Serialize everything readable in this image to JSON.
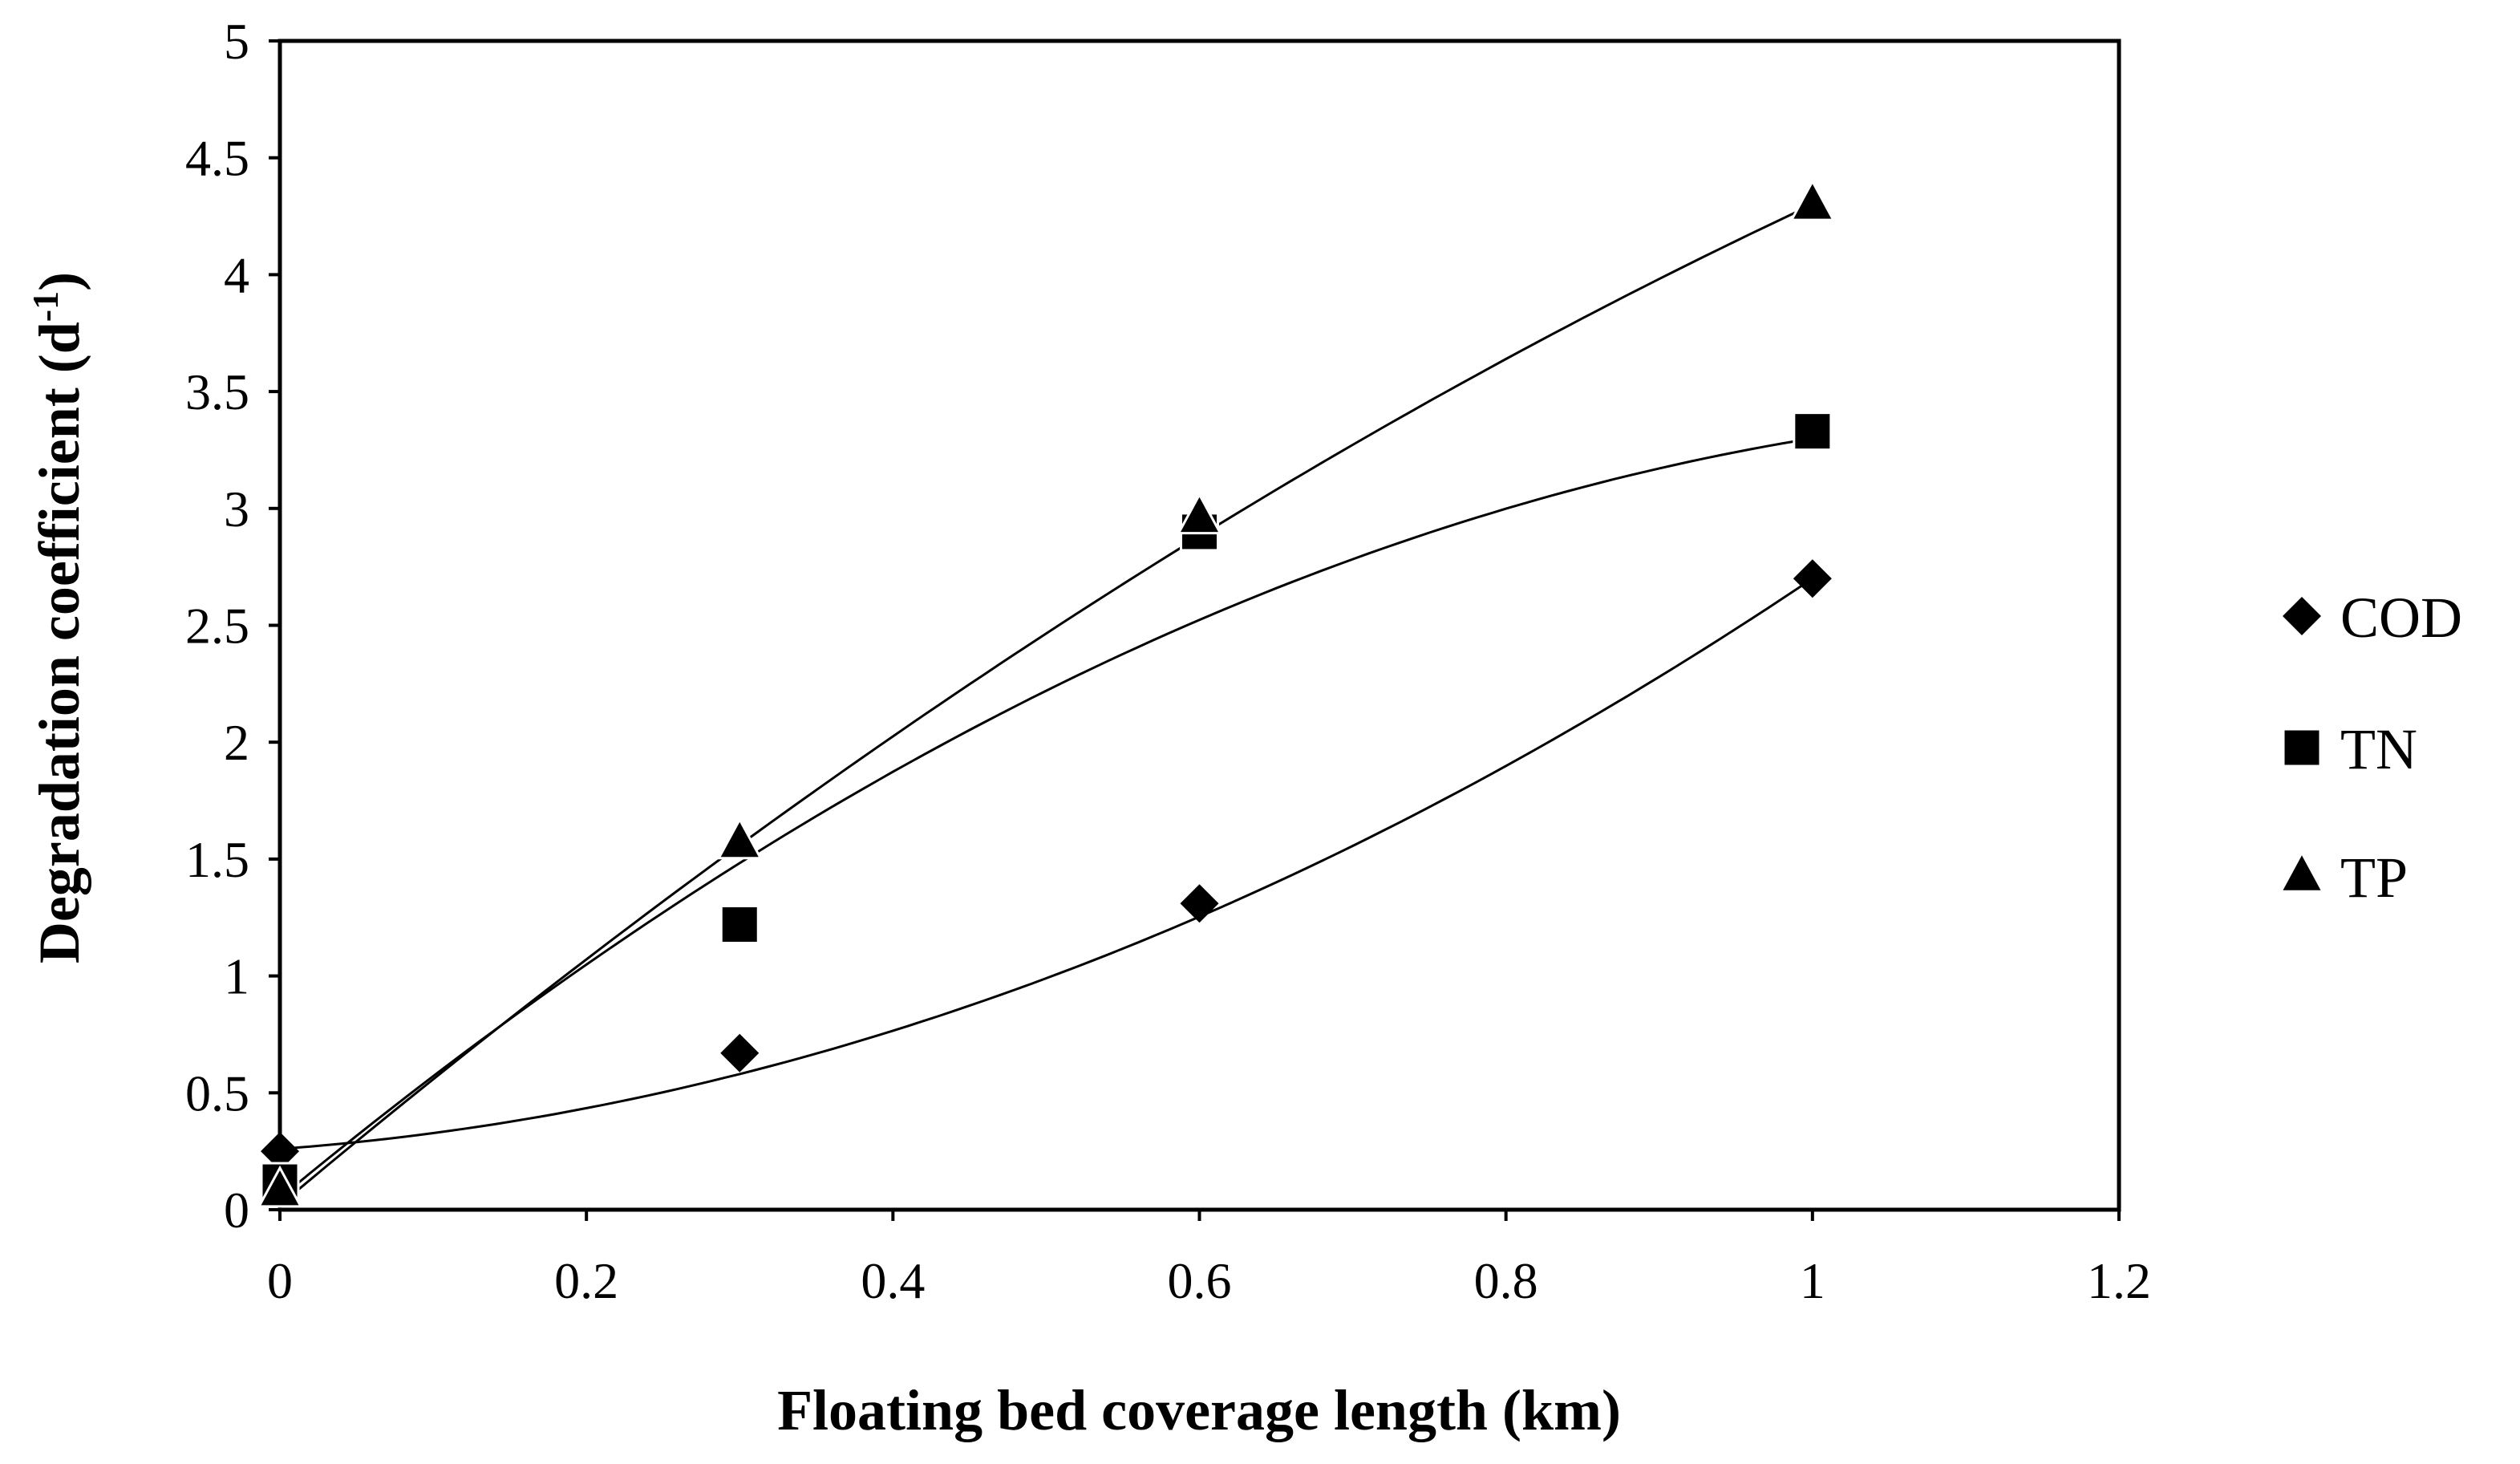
{
  "chart_data": {
    "type": "scatter",
    "title": "",
    "xlabel": "Floating bed coverage length (km)",
    "ylabel_main": "Degradation coefficient (d",
    "ylabel_sup": "-1",
    "ylabel_close": ")",
    "xlim": [
      0,
      1.2
    ],
    "ylim": [
      0,
      5
    ],
    "x_ticks": [
      "0",
      "0.2",
      "0.4",
      "0.6",
      "0.8",
      "1",
      "1.2"
    ],
    "x_tick_values": [
      0,
      0.2,
      0.4,
      0.6,
      0.8,
      1,
      1.2
    ],
    "y_ticks": [
      "0",
      "0.5",
      "1",
      "1.5",
      "2",
      "2.5",
      "3",
      "3.5",
      "4",
      "4.5",
      "5"
    ],
    "y_tick_values": [
      0,
      0.5,
      1,
      1.5,
      2,
      2.5,
      3,
      3.5,
      4,
      4.5,
      5
    ],
    "grid": false,
    "legend_position": "right",
    "trendline": "polynomial order 2",
    "series": [
      {
        "name": "COD",
        "marker": "diamond",
        "x": [
          0,
          0.3,
          0.6,
          1
        ],
        "y": [
          0.25,
          0.67,
          1.31,
          2.7
        ],
        "trend_coeffs": [
          0.26,
          0.48,
          1.96
        ]
      },
      {
        "name": "TN",
        "marker": "square",
        "x": [
          0,
          0.3,
          0.6,
          1
        ],
        "y": [
          0.12,
          1.22,
          2.9,
          3.33
        ],
        "trend_coeffs": [
          0.05,
          5.43,
          -2.18
        ]
      },
      {
        "name": "TP",
        "marker": "triangle",
        "x": [
          0,
          0.3,
          0.6,
          1
        ],
        "y": [
          0.08,
          1.57,
          2.96,
          4.3
        ],
        "trend_coeffs": [
          0.02,
          5.5,
          -1.22
        ]
      }
    ]
  }
}
